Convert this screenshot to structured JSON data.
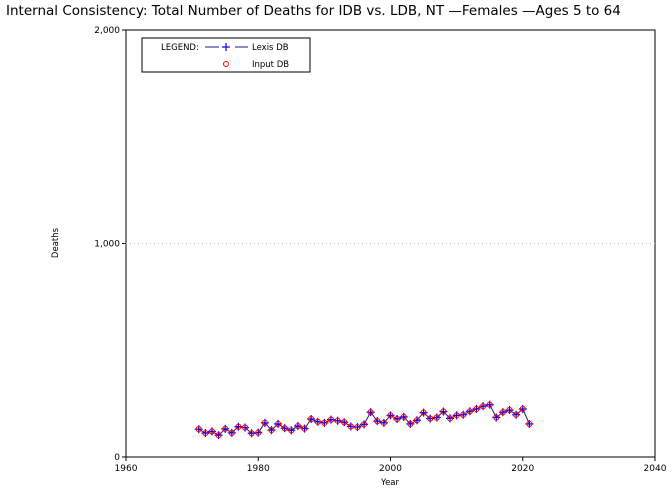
{
  "chart_data": {
    "type": "line",
    "title": "Internal Consistency: Total Number of Deaths for IDB vs. LDB, NT —Females —Ages 5 to 64",
    "xlabel": "Year",
    "ylabel": "Deaths",
    "xlim": [
      1960,
      2040
    ],
    "ylim": [
      0,
      2000
    ],
    "x_ticks": [
      "1960",
      "1980",
      "2000",
      "2020",
      "2040"
    ],
    "y_ticks": [
      "0",
      "1,000",
      "2,000"
    ],
    "grid": "horizontal dotted at 1,000 and 2,000",
    "legend": {
      "placement": "top-left",
      "heading": "LEGEND:",
      "entries": [
        "Lexis DB",
        "Input DB"
      ]
    },
    "x": [
      1971,
      1972,
      1973,
      1974,
      1975,
      1976,
      1977,
      1978,
      1979,
      1980,
      1981,
      1982,
      1983,
      1984,
      1985,
      1986,
      1987,
      1988,
      1989,
      1990,
      1991,
      1992,
      1993,
      1994,
      1995,
      1996,
      1997,
      1998,
      1999,
      2000,
      2001,
      2002,
      2003,
      2004,
      2005,
      2006,
      2007,
      2008,
      2009,
      2010,
      2011,
      2012,
      2013,
      2014,
      2015,
      2016,
      2017,
      2018,
      2019,
      2020,
      2021
    ],
    "series": [
      {
        "name": "Lexis DB",
        "marker": "plus",
        "color": "#0000ff",
        "line_color": "#1a1a8c",
        "values": [
          130,
          112,
          120,
          102,
          132,
          113,
          142,
          138,
          111,
          114,
          160,
          126,
          155,
          135,
          125,
          145,
          133,
          178,
          165,
          160,
          175,
          170,
          163,
          143,
          140,
          153,
          210,
          168,
          160,
          195,
          178,
          188,
          155,
          172,
          208,
          180,
          185,
          213,
          181,
          195,
          198,
          214,
          225,
          238,
          245,
          185,
          210,
          220,
          198,
          225,
          155
        ]
      },
      {
        "name": "Input DB",
        "marker": "circle",
        "color": "#ff0000",
        "values": [
          130,
          112,
          120,
          102,
          132,
          113,
          142,
          138,
          111,
          114,
          160,
          126,
          155,
          135,
          125,
          145,
          133,
          178,
          165,
          160,
          175,
          170,
          163,
          143,
          140,
          153,
          210,
          168,
          160,
          195,
          178,
          188,
          155,
          172,
          208,
          180,
          185,
          213,
          181,
          195,
          198,
          214,
          225,
          238,
          245,
          185,
          210,
          220,
          198,
          225,
          155
        ]
      }
    ]
  }
}
